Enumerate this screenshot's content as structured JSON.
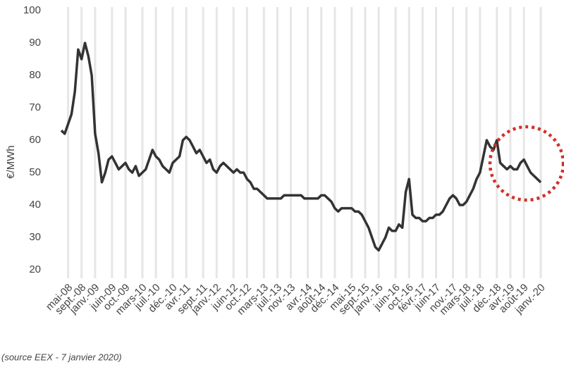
{
  "chart_data": {
    "type": "line",
    "y_label": "€/MWh",
    "source": "(source EEX - 7 janvier 2020)",
    "categories": [
      null,
      null,
      "mai-08",
      null,
      null,
      null,
      "sept.-08",
      null,
      null,
      null,
      "janv.-09",
      null,
      null,
      null,
      null,
      "juin-09",
      null,
      null,
      null,
      "oct.-09",
      null,
      null,
      null,
      null,
      "mars-10",
      null,
      null,
      null,
      "juil.-10",
      null,
      null,
      null,
      null,
      "déc.-10",
      null,
      null,
      null,
      "avr.-11",
      null,
      null,
      null,
      null,
      "sept.-11",
      null,
      null,
      null,
      "janv.-12",
      null,
      null,
      null,
      null,
      "juin-12",
      null,
      null,
      null,
      "oct.-12",
      null,
      null,
      null,
      null,
      "mars-13",
      null,
      null,
      null,
      "juil.-13",
      null,
      null,
      null,
      "nov.-13",
      null,
      null,
      null,
      null,
      "avr.-14",
      null,
      null,
      null,
      "août-14",
      null,
      null,
      null,
      "déc.-14",
      null,
      null,
      null,
      null,
      "mai-15",
      null,
      null,
      null,
      "sept.-15",
      null,
      null,
      null,
      "janv.-16",
      null,
      null,
      null,
      null,
      "juin-16",
      null,
      null,
      null,
      "oct.-16",
      null,
      null,
      null,
      "févr.-17",
      null,
      null,
      null,
      "juin-17",
      null,
      null,
      null,
      null,
      "nov.-17",
      null,
      null,
      null,
      "mars-18",
      null,
      null,
      null,
      "juil.-18",
      null,
      null,
      null,
      null,
      "déc.-18",
      null,
      null,
      null,
      "avr.-19",
      null,
      null,
      null,
      "août-19",
      null,
      null,
      null,
      null,
      "janv.-20"
    ],
    "series": [
      {
        "color": "#333333",
        "values": [
          63,
          62,
          65,
          68,
          75,
          88,
          85,
          90,
          86,
          80,
          62,
          56,
          47,
          50,
          54,
          55,
          53,
          51,
          52,
          53,
          51,
          50,
          52,
          49,
          50,
          51,
          54,
          57,
          55,
          54,
          52,
          51,
          50,
          53,
          54,
          55,
          60,
          61,
          60,
          58,
          56,
          57,
          55,
          53,
          54,
          51,
          50,
          52,
          53,
          52,
          51,
          50,
          51,
          50,
          50,
          48,
          47,
          45,
          45,
          44,
          43,
          42,
          42,
          42,
          42,
          42,
          43,
          43,
          43,
          43,
          43,
          43,
          42,
          42,
          42,
          42,
          42,
          43,
          43,
          42,
          41,
          39,
          38,
          39,
          39,
          39,
          39,
          38,
          38,
          37,
          35,
          33,
          30,
          27,
          26,
          28,
          30,
          33,
          32,
          32,
          34,
          33,
          44,
          48,
          37,
          36,
          36,
          35,
          35,
          36,
          36,
          37,
          37,
          38,
          40,
          42,
          43,
          42,
          40,
          40,
          41,
          43,
          45,
          48,
          50,
          55,
          60,
          58,
          57,
          60,
          53,
          52,
          51,
          52,
          51,
          51,
          53,
          54,
          52,
          50,
          49,
          48,
          47
        ]
      }
    ],
    "ylim": [
      20,
      100
    ],
    "yticks": [
      20,
      30,
      40,
      50,
      60,
      70,
      80,
      90,
      100
    ],
    "grid": true
  }
}
